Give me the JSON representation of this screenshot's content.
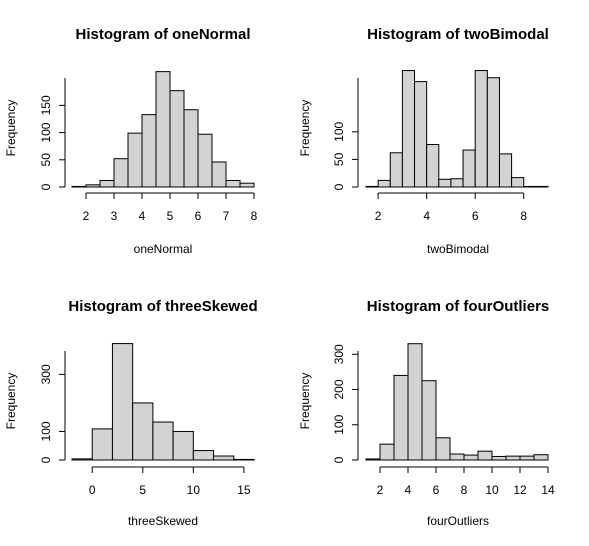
{
  "colors": {
    "bar_fill": "#d3d3d3",
    "bar_stroke": "#000000",
    "background": "#ffffff"
  },
  "chart_data": [
    {
      "type": "bar",
      "title": "Histogram of oneNormal",
      "xlabel": "oneNormal",
      "ylabel": "Frequency",
      "xlim": [
        1.5,
        8
      ],
      "ylim": [
        0,
        215
      ],
      "xticks": [
        2,
        3,
        4,
        5,
        6,
        7,
        8
      ],
      "yticks": [
        0,
        50,
        100,
        150
      ],
      "bin_edges": [
        1.5,
        2,
        2.5,
        3,
        3.5,
        4,
        4.5,
        5,
        5.5,
        6,
        6.5,
        7,
        7.5,
        8
      ],
      "values": [
        1,
        4,
        12,
        52,
        99,
        133,
        212,
        177,
        142,
        97,
        46,
        12,
        7
      ]
    },
    {
      "type": "bar",
      "title": "Histogram of twoBimodal",
      "xlabel": "twoBimodal",
      "ylabel": "Frequency",
      "xlim": [
        1.5,
        9
      ],
      "ylim": [
        0,
        212
      ],
      "xticks": [
        2,
        4,
        6,
        8
      ],
      "yticks": [
        0,
        50,
        100
      ],
      "bin_edges": [
        1.5,
        2,
        2.5,
        3,
        3.5,
        4,
        4.5,
        5,
        5.5,
        6,
        6.5,
        7,
        7.5,
        8,
        8.5,
        9
      ],
      "values": [
        1,
        12,
        62,
        211,
        191,
        77,
        14,
        15,
        67,
        211,
        198,
        60,
        17,
        1,
        1
      ]
    },
    {
      "type": "bar",
      "title": "Histogram of threeSkewed",
      "xlabel": "threeSkewed",
      "ylabel": "Frequency",
      "xlim": [
        -2,
        16
      ],
      "ylim": [
        0,
        410
      ],
      "xticks": [
        0,
        5,
        10,
        15
      ],
      "yticks": [
        0,
        100,
        300
      ],
      "bin_edges": [
        -2,
        0,
        2,
        4,
        6,
        8,
        10,
        12,
        14,
        16
      ],
      "values": [
        4,
        109,
        408,
        200,
        133,
        100,
        33,
        14,
        2
      ]
    },
    {
      "type": "bar",
      "title": "Histogram of fourOutliers",
      "xlabel": "fourOutliers",
      "ylabel": "Frequency",
      "xlim": [
        1,
        14
      ],
      "ylim": [
        0,
        332
      ],
      "xticks": [
        2,
        4,
        6,
        8,
        10,
        12,
        14
      ],
      "yticks": [
        0,
        100,
        200,
        300
      ],
      "bin_edges": [
        1,
        2,
        3,
        4,
        5,
        6,
        7,
        8,
        9,
        10,
        11,
        12,
        13,
        14
      ],
      "values": [
        3,
        45,
        240,
        330,
        225,
        63,
        17,
        14,
        25,
        10,
        11,
        11,
        15
      ]
    }
  ]
}
